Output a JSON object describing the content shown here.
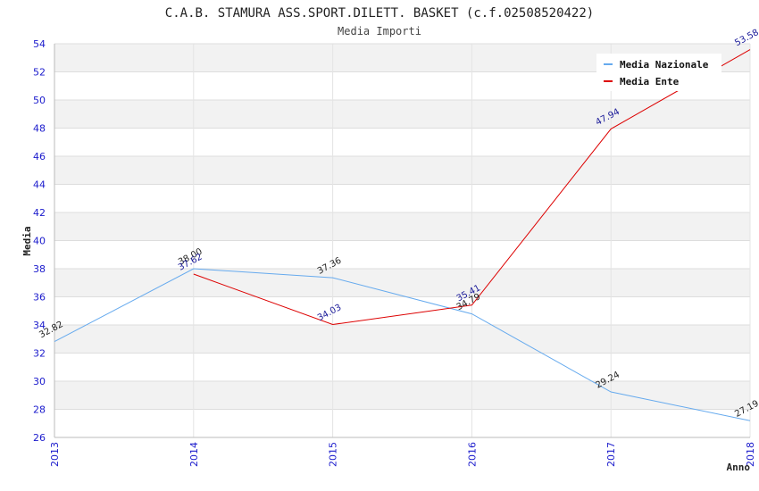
{
  "chart_data": {
    "type": "line",
    "title": "C.A.B. STAMURA ASS.SPORT.DILETT. BASKET (c.f.02508520422)",
    "subtitle": "Media Importi",
    "xlabel": "Anno",
    "ylabel": "Media",
    "categories": [
      "2013",
      "2014",
      "2015",
      "2016",
      "2017",
      "2018"
    ],
    "ylim": [
      26,
      54
    ],
    "yticks": [
      "26",
      "28",
      "30",
      "32",
      "34",
      "36",
      "38",
      "40",
      "42",
      "44",
      "46",
      "48",
      "50",
      "52",
      "54"
    ],
    "grid": true,
    "legend_position": "top-right",
    "series": [
      {
        "name": "Media Nazionale",
        "color": "#66aaee",
        "label_color": "#222222",
        "values": [
          32.82,
          38.0,
          37.36,
          34.79,
          29.24,
          27.19
        ],
        "labels": [
          "32.82",
          "38.00",
          "37.36",
          "34.79",
          "29.24",
          "27.19"
        ]
      },
      {
        "name": "Media Ente",
        "color": "#dd0000",
        "label_color": "#1a1a99",
        "values": [
          null,
          37.62,
          34.03,
          35.41,
          47.94,
          53.58
        ],
        "labels": [
          "",
          "37.62",
          "34.03",
          "35.41",
          "47.94",
          "53.58"
        ]
      }
    ]
  }
}
